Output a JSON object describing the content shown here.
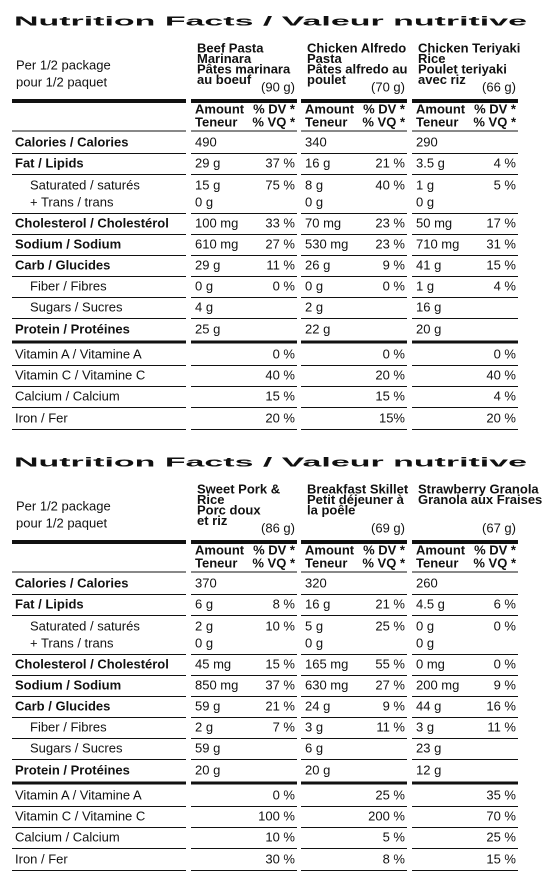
{
  "panels": [
    {
      "title": "Nutrition Facts / Valeur nutritive",
      "serving": [
        "Per 1/2 package",
        "pour 1/2 paquet"
      ],
      "products": [
        {
          "name": [
            "Beef Pasta",
            "Marinara",
            "Pâtes marinara",
            "au boeuf"
          ],
          "weight": "(90 g)"
        },
        {
          "name": [
            "Chicken Alfredo",
            "Pasta",
            "Pâtes alfredo au",
            "poulet"
          ],
          "weight": "(70 g)"
        },
        {
          "name": [
            "Chicken Teriyaki",
            "Rice",
            "Poulet teriyaki",
            "avec riz"
          ],
          "weight": "(66 g)"
        }
      ],
      "headers": {
        "amount": [
          "Amount",
          "Teneur"
        ],
        "dv": [
          "% DV *",
          "% VQ *"
        ]
      },
      "rows": [
        {
          "label": "Calories / Calories",
          "cells": [
            {
              "amount": "490"
            },
            {
              "amount": "340"
            },
            {
              "amount": "290"
            }
          ]
        },
        {
          "label": "Fat / Lipids",
          "cells": [
            {
              "amount": "29 g",
              "dv": "37 %"
            },
            {
              "amount": "16 g",
              "dv": "21 %"
            },
            {
              "amount": "3.5 g",
              "dv": "4 %"
            }
          ]
        },
        {
          "label": "Saturated / saturés",
          "cells": [
            {
              "amount": "15 g",
              "dv": "75 %"
            },
            {
              "amount": "8 g",
              "dv": "40 %"
            },
            {
              "amount": "1 g",
              "dv": "5 %"
            }
          ]
        },
        {
          "label": "+ Trans / trans",
          "cells": [
            {
              "amount": "0 g"
            },
            {
              "amount": "0 g"
            },
            {
              "amount": "0 g"
            }
          ]
        },
        {
          "label": "Cholesterol / Cholestérol",
          "cells": [
            {
              "amount": "100 mg",
              "dv": "33 %"
            },
            {
              "amount": "70 mg",
              "dv": "23 %"
            },
            {
              "amount": "50 mg",
              "dv": "17 %"
            }
          ]
        },
        {
          "label": "Sodium / Sodium",
          "cells": [
            {
              "amount": "610 mg",
              "dv": "27 %"
            },
            {
              "amount": "530 mg",
              "dv": "23 %"
            },
            {
              "amount": "710 mg",
              "dv": "31 %"
            }
          ]
        },
        {
          "label": "Carb / Glucides",
          "cells": [
            {
              "amount": "29 g",
              "dv": "11 %"
            },
            {
              "amount": "26 g",
              "dv": "9 %"
            },
            {
              "amount": "41 g",
              "dv": "15 %"
            }
          ]
        },
        {
          "label": "Fiber / Fibres",
          "cells": [
            {
              "amount": "0 g",
              "dv": "0 %"
            },
            {
              "amount": "0 g",
              "dv": "0 %"
            },
            {
              "amount": "1 g",
              "dv": "4 %"
            }
          ]
        },
        {
          "label": "Sugars / Sucres",
          "cells": [
            {
              "amount": "4 g"
            },
            {
              "amount": "2 g"
            },
            {
              "amount": "16 g"
            }
          ]
        },
        {
          "label": "Protein / Protéines",
          "cells": [
            {
              "amount": "25 g"
            },
            {
              "amount": "22 g"
            },
            {
              "amount": "20 g"
            }
          ]
        },
        {
          "label": "Vitamin A / Vitamine A",
          "cells": [
            {
              "dv": "0 %"
            },
            {
              "dv": "0 %"
            },
            {
              "dv": "0 %"
            }
          ]
        },
        {
          "label": "Vitamin C / Vitamine C",
          "cells": [
            {
              "dv": "40 %"
            },
            {
              "dv": "20 %"
            },
            {
              "dv": "40 %"
            }
          ]
        },
        {
          "label": "Calcium / Calcium",
          "cells": [
            {
              "dv": "15 %"
            },
            {
              "dv": "15 %"
            },
            {
              "dv": "4 %"
            }
          ]
        },
        {
          "label": "Iron / Fer",
          "cells": [
            {
              "dv": "20 %"
            },
            {
              "dv": "15%"
            },
            {
              "dv": "20 %"
            }
          ]
        }
      ]
    },
    {
      "title": "Nutrition Facts / Valeur nutritive",
      "serving": [
        "Per 1/2 package",
        "pour 1/2 paquet"
      ],
      "products": [
        {
          "name": [
            "Sweet Pork &",
            "Rice",
            "Porc doux",
            "et riz"
          ],
          "weight": "(86 g)"
        },
        {
          "name": [
            "Breakfast Skillet",
            "Petit déjeuner à",
            "la poêle"
          ],
          "weight": "(69 g)"
        },
        {
          "name": [
            "Strawberry Granola",
            "Granola aux Fraises"
          ],
          "weight": "(67 g)"
        }
      ],
      "headers": {
        "amount": [
          "Amount",
          "Teneur"
        ],
        "dv": [
          "% DV *",
          "% VQ *"
        ]
      },
      "rows": [
        {
          "label": "Calories / Calories",
          "cells": [
            {
              "amount": "370"
            },
            {
              "amount": "320"
            },
            {
              "amount": "260"
            }
          ]
        },
        {
          "label": "Fat / Lipids",
          "cells": [
            {
              "amount": "6 g",
              "dv": "8 %"
            },
            {
              "amount": "16 g",
              "dv": "21 %"
            },
            {
              "amount": "4.5 g",
              "dv": "6 %"
            }
          ]
        },
        {
          "label": "Saturated / saturés",
          "cells": [
            {
              "amount": "2 g",
              "dv": "10 %"
            },
            {
              "amount": "5 g",
              "dv": "25 %"
            },
            {
              "amount": "0 g",
              "dv": "0 %"
            }
          ]
        },
        {
          "label": "+ Trans / trans",
          "cells": [
            {
              "amount": "0 g"
            },
            {
              "amount": "0 g"
            },
            {
              "amount": "0 g"
            }
          ]
        },
        {
          "label": "Cholesterol / Cholestérol",
          "cells": [
            {
              "amount": "45 mg",
              "dv": "15 %"
            },
            {
              "amount": "165 mg",
              "dv": "55 %"
            },
            {
              "amount": "0 mg",
              "dv": "0 %"
            }
          ]
        },
        {
          "label": "Sodium / Sodium",
          "cells": [
            {
              "amount": "850 mg",
              "dv": "37 %"
            },
            {
              "amount": "630 mg",
              "dv": "27 %"
            },
            {
              "amount": "200 mg",
              "dv": "9 %"
            }
          ]
        },
        {
          "label": "Carb / Glucides",
          "cells": [
            {
              "amount": "59 g",
              "dv": "21 %"
            },
            {
              "amount": "24 g",
              "dv": "9 %"
            },
            {
              "amount": "44 g",
              "dv": "16 %"
            }
          ]
        },
        {
          "label": "Fiber / Fibres",
          "cells": [
            {
              "amount": "2 g",
              "dv": "7 %"
            },
            {
              "amount": "3 g",
              "dv": "11 %"
            },
            {
              "amount": "3 g",
              "dv": "11 %"
            }
          ]
        },
        {
          "label": "Sugars / Sucres",
          "cells": [
            {
              "amount": "59 g"
            },
            {
              "amount": "6 g"
            },
            {
              "amount": "23 g"
            }
          ]
        },
        {
          "label": "Protein / Protéines",
          "cells": [
            {
              "amount": "20 g"
            },
            {
              "amount": "20 g"
            },
            {
              "amount": "12 g"
            }
          ]
        },
        {
          "label": "Vitamin A / Vitamine A",
          "cells": [
            {
              "dv": "0 %"
            },
            {
              "dv": "25 %"
            },
            {
              "dv": "35 %"
            }
          ]
        },
        {
          "label": "Vitamin C / Vitamine C",
          "cells": [
            {
              "dv": "100 %"
            },
            {
              "dv": "200 %"
            },
            {
              "dv": "70 %"
            }
          ]
        },
        {
          "label": "Calcium / Calcium",
          "cells": [
            {
              "dv": "10 %"
            },
            {
              "dv": "5 %"
            },
            {
              "dv": "25 %"
            }
          ]
        },
        {
          "label": "Iron / Fer",
          "cells": [
            {
              "dv": "30 %"
            },
            {
              "dv": "8 %"
            },
            {
              "dv": "15 %"
            }
          ]
        }
      ]
    }
  ]
}
